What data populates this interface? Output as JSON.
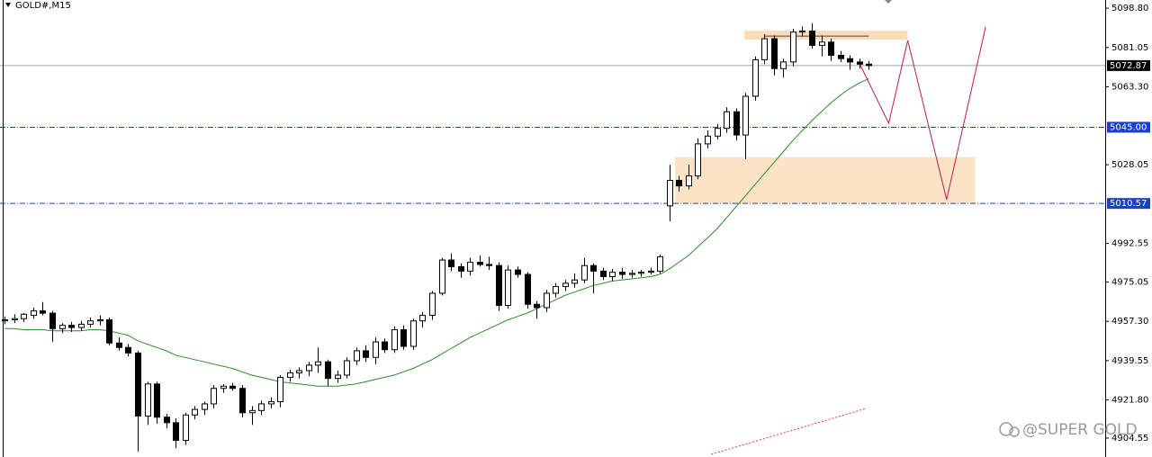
{
  "chart_data": {
    "type": "candlestick",
    "title": "GOLD#,M15",
    "watermark": "@SUPER GOLD",
    "up_color": "#ffffff",
    "down_color": "#000000",
    "ylim": [
      4896,
      5102.5
    ],
    "xlim": [
      -0.5,
      115.9
    ],
    "yticks": [
      {
        "value": 5098.8,
        "label": "5098.80"
      },
      5081.05,
      {
        "value": 5063.3,
        "label": "5063.30"
      },
      5028.05,
      4992.55,
      4975.05,
      {
        "value": 4957.3,
        "label": "4957.30"
      },
      4939.55,
      {
        "value": 4921.8,
        "label": "4921.80"
      },
      4904.55
    ],
    "open": [
      4957.5,
      4958.0,
      4958.5,
      4960.0,
      4962.0,
      4961.0,
      4954.0,
      4955.5,
      4954.5,
      4956.0,
      4957.5,
      4958.0,
      4947.5,
      4945.5,
      4943.0,
      4914.5,
      4929.0,
      4914.0,
      4911.5,
      4903.5,
      4915.0,
      4917.5,
      4920.0,
      4927.0,
      4928.0,
      4927.0,
      4916.0,
      4917.0,
      4920.0,
      4921.0,
      4932.0,
      4934.0,
      4935.0,
      4937.5,
      4939.0,
      4931.5,
      4933.0,
      4939.5,
      4944.0,
      4941.0,
      4948.0,
      4944.5,
      4953.5,
      4946.0,
      4957.5,
      4960.0,
      4970.0,
      4985.0,
      4982.0,
      4980.0,
      4984.0,
      4983.0,
      4982.5,
      4964.5,
      4980.5,
      4978.5,
      4965.0,
      4963.5,
      4970.0,
      4973.0,
      4974.5,
      4976.0,
      4982.5,
      4980.0,
      4977.5,
      4979.5,
      4978.5,
      4979.0,
      4979.5,
      4980.0,
      5009.5,
      5021.0,
      5018.5,
      5023.0,
      5037.5,
      5041.0,
      5044.5,
      5052.0,
      5041.5,
      5059.0,
      5075.5,
      5085.0,
      5071.5,
      5074.5,
      5088.0,
      5088.5,
      5082.0,
      5083.5,
      5077.5,
      5076.0,
      5074.5,
      5073.5
    ],
    "high": [
      4959.5,
      4960.5,
      4961.0,
      4963.5,
      4966.0,
      4962.0,
      4956.5,
      4957.0,
      4957.5,
      4959.0,
      4960.0,
      4959.0,
      4950.0,
      4947.0,
      4944.0,
      4930.0,
      4930.0,
      4915.5,
      4913.5,
      4916.0,
      4919.0,
      4921.0,
      4928.5,
      4929.0,
      4929.5,
      4928.5,
      4919.0,
      4921.5,
      4923.0,
      4933.0,
      4935.5,
      4936.5,
      4939.0,
      4945.5,
      4940.0,
      4935.0,
      4941.0,
      4945.5,
      4946.5,
      4950.0,
      4949.5,
      4955.0,
      4955.5,
      4958.5,
      4961.5,
      4971.0,
      4986.0,
      4988.0,
      4983.5,
      4986.0,
      4987.0,
      4986.5,
      4984.0,
      4982.5,
      4982.0,
      4979.5,
      4966.5,
      4971.5,
      4974.5,
      4976.0,
      4979.0,
      4986.0,
      4983.5,
      4981.5,
      4981.0,
      4981.5,
      4980.5,
      4980.5,
      4981.5,
      4987.5,
      5028.0,
      5023.0,
      5028.0,
      5040.0,
      5043.5,
      5046.5,
      5054.0,
      5053.5,
      5060.5,
      5077.0,
      5087.0,
      5086.5,
      5076.0,
      5089.5,
      5090.5,
      5092.0,
      5086.5,
      5085.0,
      5079.5,
      5077.5,
      5076.0,
      5075.0
    ],
    "low": [
      4956.0,
      4956.5,
      4957.0,
      4958.5,
      4960.0,
      4948.0,
      4952.0,
      4952.5,
      4953.0,
      4954.5,
      4955.5,
      4946.5,
      4944.0,
      4941.5,
      4898.5,
      4910.5,
      4911.0,
      4909.0,
      4900.0,
      4901.5,
      4913.0,
      4915.0,
      4918.0,
      4925.0,
      4926.0,
      4914.0,
      4910.5,
      4915.0,
      4918.0,
      4918.5,
      4930.0,
      4931.5,
      4932.5,
      4934.0,
      4928.0,
      4929.5,
      4931.5,
      4937.5,
      4939.0,
      4938.0,
      4943.0,
      4943.0,
      4944.5,
      4944.5,
      4954.5,
      4958.0,
      4969.0,
      4980.0,
      4977.0,
      4978.0,
      4982.0,
      4980.5,
      4962.0,
      4963.0,
      4977.0,
      4963.0,
      4958.5,
      4961.5,
      4968.0,
      4971.0,
      4972.5,
      4974.5,
      4970.0,
      4976.0,
      4975.5,
      4976.5,
      4977.0,
      4977.5,
      4978.5,
      4979.0,
      5002.5,
      5016.0,
      5017.0,
      5021.5,
      5035.5,
      5039.5,
      5042.5,
      5039.0,
      5030.5,
      5057.0,
      5073.5,
      5068.5,
      5067.5,
      5072.5,
      5086.0,
      5080.5,
      5077.0,
      5075.0,
      5074.5,
      5071.0,
      5071.5,
      5071.0
    ],
    "close": [
      4958.0,
      4958.5,
      4960.5,
      4962.0,
      4961.0,
      4954.0,
      4955.5,
      4954.5,
      4956.0,
      4957.5,
      4958.0,
      4947.5,
      4945.5,
      4943.0,
      4914.5,
      4929.0,
      4914.0,
      4911.5,
      4903.5,
      4915.0,
      4917.5,
      4920.0,
      4927.0,
      4928.0,
      4927.0,
      4916.0,
      4917.0,
      4920.0,
      4921.0,
      4932.0,
      4934.0,
      4935.0,
      4937.5,
      4939.0,
      4931.5,
      4933.0,
      4939.5,
      4944.0,
      4941.0,
      4948.0,
      4944.5,
      4953.5,
      4946.0,
      4957.5,
      4960.0,
      4970.0,
      4985.0,
      4982.0,
      4980.0,
      4984.0,
      4983.0,
      4982.5,
      4964.5,
      4980.5,
      4978.5,
      4965.0,
      4963.5,
      4970.0,
      4973.0,
      4974.5,
      4976.0,
      4982.5,
      4980.0,
      4977.5,
      4979.5,
      4978.5,
      4979.0,
      4979.5,
      4980.0,
      4986.5,
      5021.0,
      5018.5,
      5023.0,
      5037.5,
      5041.0,
      5044.5,
      5052.0,
      5041.5,
      5059.0,
      5075.5,
      5085.0,
      5071.5,
      5074.5,
      5088.0,
      5088.5,
      5082.0,
      5083.5,
      5077.5,
      5076.0,
      5074.5,
      5073.5,
      5072.87
    ],
    "ma": {
      "color": "#2e8b2e",
      "values": [
        4954,
        4954,
        4953.5,
        4953.5,
        4953.5,
        4953,
        4953,
        4953,
        4953,
        4953.5,
        4953.5,
        4953,
        4952,
        4951,
        4948.5,
        4947,
        4945.5,
        4944,
        4942,
        4941,
        4940,
        4939,
        4938,
        4937,
        4936,
        4934.5,
        4933,
        4932,
        4931,
        4930,
        4929.5,
        4929,
        4928.5,
        4928,
        4928,
        4928,
        4928.5,
        4929,
        4930,
        4931,
        4932,
        4933,
        4934.5,
        4936,
        4938,
        4940,
        4942.5,
        4945,
        4947.5,
        4950,
        4952,
        4954,
        4956,
        4958,
        4959.5,
        4961,
        4963,
        4965,
        4967,
        4969,
        4970.5,
        4972,
        4973.5,
        4974.5,
        4975.5,
        4976,
        4976.5,
        4977,
        4977.5,
        4978.5,
        4981,
        4984,
        4987,
        4991,
        4995,
        4999,
        5004,
        5009,
        5014,
        5019,
        5024,
        5029,
        5034,
        5039,
        5043.5,
        5048,
        5052,
        5056,
        5059.5,
        5062.5,
        5065,
        5067
      ]
    },
    "trend": {
      "color": "#e53935",
      "x": [
        74.4,
        90.7
      ],
      "values": [
        4897.2,
        4917.9
      ]
    },
    "projection": {
      "color": "#c2185b",
      "x": [
        90.0,
        93.1,
        95.1,
        99.2,
        103.3
      ],
      "values": [
        5074.0,
        5046.8,
        5084.2,
        5012.3,
        5090.3
      ]
    },
    "zones": [
      {
        "start": 77.9,
        "end": 95.1,
        "from": 5084.6,
        "to": 5088.6,
        "color": "#fcdcb8"
      },
      {
        "start": 70.6,
        "end": 102.2,
        "from": 5010.6,
        "to": 5031.5,
        "color": "#fde3c6"
      }
    ],
    "resistance": {
      "start": 80,
      "end": 91,
      "value": 5086.2,
      "color": "#444444"
    },
    "levels": [
      {
        "value": 5072.87,
        "color": "#a0a0a0",
        "style": "solid",
        "box": "#000000"
      },
      {
        "value": 5045,
        "label": "5045.00",
        "color": "#1a3fcc",
        "style": "dashed",
        "box": "#1a3fcc"
      },
      {
        "value": 5010.57,
        "color": "#1a3fcc",
        "style": "dashed",
        "box": "#1a3fcc"
      }
    ]
  }
}
